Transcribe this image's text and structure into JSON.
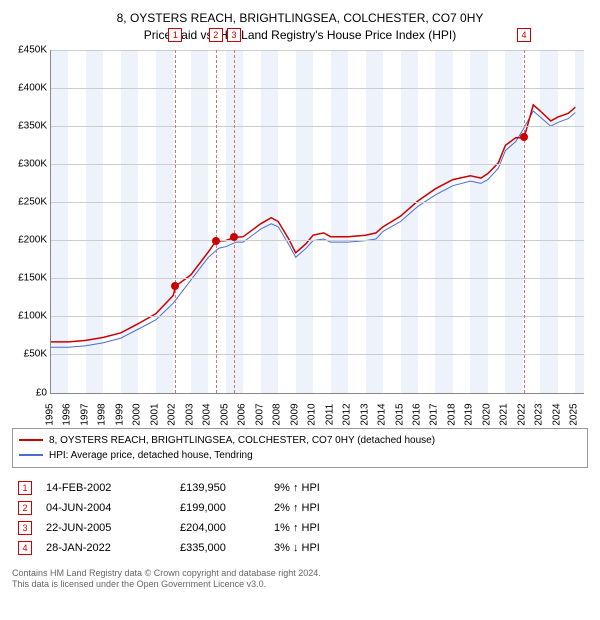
{
  "title": {
    "line1": "8, OYSTERS REACH, BRIGHTLINGSEA, COLCHESTER, CO7 0HY",
    "line2": "Price paid vs. HM Land Registry's House Price Index (HPI)"
  },
  "chart": {
    "type": "line",
    "background_color": "#ffffff",
    "grid_color": "#cccccc",
    "shade_color": "#eef2fa",
    "x_min": 1995,
    "x_max": 2025.5,
    "y_min": 0,
    "y_max": 450000,
    "y_ticks": [
      0,
      50000,
      100000,
      150000,
      200000,
      250000,
      300000,
      350000,
      400000,
      450000
    ],
    "y_tick_labels": [
      "£0",
      "£50K",
      "£100K",
      "£150K",
      "£200K",
      "£250K",
      "£300K",
      "£350K",
      "£400K",
      "£450K"
    ],
    "x_ticks": [
      1995,
      1996,
      1997,
      1998,
      1999,
      2000,
      2001,
      2002,
      2003,
      2004,
      2005,
      2006,
      2007,
      2008,
      2009,
      2010,
      2011,
      2012,
      2013,
      2014,
      2015,
      2016,
      2017,
      2018,
      2019,
      2020,
      2021,
      2022,
      2023,
      2024,
      2025
    ],
    "shaded_years": [
      1995,
      1997,
      1999,
      2001,
      2003,
      2005,
      2007,
      2009,
      2011,
      2013,
      2015,
      2017,
      2019,
      2021,
      2023,
      2025
    ],
    "series": [
      {
        "name": "hpi",
        "label": "HPI: Average price, detached house, Tendring",
        "color": "#4a6fd4",
        "line_width": 1,
        "data": [
          [
            1995,
            60000
          ],
          [
            1996,
            60000
          ],
          [
            1997,
            62000
          ],
          [
            1998,
            66000
          ],
          [
            1999,
            72000
          ],
          [
            2000,
            84000
          ],
          [
            2001,
            96000
          ],
          [
            2002,
            118000
          ],
          [
            2003,
            148000
          ],
          [
            2004,
            178000
          ],
          [
            2004.6,
            190000
          ],
          [
            2005,
            192000
          ],
          [
            2005.6,
            198000
          ],
          [
            2006,
            198000
          ],
          [
            2007,
            215000
          ],
          [
            2007.6,
            222000
          ],
          [
            2008,
            218000
          ],
          [
            2008.6,
            195000
          ],
          [
            2009,
            178000
          ],
          [
            2009.6,
            190000
          ],
          [
            2010,
            200000
          ],
          [
            2010.6,
            202000
          ],
          [
            2011,
            198000
          ],
          [
            2012,
            198000
          ],
          [
            2013,
            200000
          ],
          [
            2013.6,
            202000
          ],
          [
            2014,
            212000
          ],
          [
            2015,
            225000
          ],
          [
            2016,
            245000
          ],
          [
            2017,
            260000
          ],
          [
            2018,
            272000
          ],
          [
            2019,
            278000
          ],
          [
            2019.6,
            275000
          ],
          [
            2020,
            280000
          ],
          [
            2020.6,
            295000
          ],
          [
            2021,
            318000
          ],
          [
            2021.6,
            330000
          ],
          [
            2022,
            345000
          ],
          [
            2022.6,
            370000
          ],
          [
            2023,
            362000
          ],
          [
            2023.6,
            350000
          ],
          [
            2024,
            355000
          ],
          [
            2024.6,
            360000
          ],
          [
            2025,
            368000
          ]
        ]
      },
      {
        "name": "property",
        "label": "8, OYSTERS REACH, BRIGHTLINGSEA, COLCHESTER, CO7 0HY (detached house)",
        "color": "#cc0000",
        "line_width": 1.5,
        "data": [
          [
            1995,
            67000
          ],
          [
            1996,
            67000
          ],
          [
            1997,
            69000
          ],
          [
            1998,
            73000
          ],
          [
            1999,
            79000
          ],
          [
            2000,
            91000
          ],
          [
            2001,
            104000
          ],
          [
            2002,
            128000
          ],
          [
            2002.12,
            139950
          ],
          [
            2003,
            155000
          ],
          [
            2004,
            185000
          ],
          [
            2004.43,
            199000
          ],
          [
            2005,
            200000
          ],
          [
            2005.47,
            204000
          ],
          [
            2006,
            205000
          ],
          [
            2007,
            222000
          ],
          [
            2007.6,
            230000
          ],
          [
            2008,
            225000
          ],
          [
            2008.6,
            202000
          ],
          [
            2009,
            184000
          ],
          [
            2009.6,
            196000
          ],
          [
            2010,
            207000
          ],
          [
            2010.6,
            210000
          ],
          [
            2011,
            205000
          ],
          [
            2012,
            205000
          ],
          [
            2013,
            207000
          ],
          [
            2013.6,
            210000
          ],
          [
            2014,
            218000
          ],
          [
            2015,
            232000
          ],
          [
            2016,
            252000
          ],
          [
            2017,
            268000
          ],
          [
            2018,
            280000
          ],
          [
            2019,
            285000
          ],
          [
            2019.6,
            282000
          ],
          [
            2020,
            288000
          ],
          [
            2020.6,
            302000
          ],
          [
            2021,
            325000
          ],
          [
            2021.6,
            335000
          ],
          [
            2022.07,
            335000
          ],
          [
            2022.6,
            378000
          ],
          [
            2023,
            370000
          ],
          [
            2023.6,
            357000
          ],
          [
            2024,
            362000
          ],
          [
            2024.6,
            367000
          ],
          [
            2025,
            375000
          ]
        ]
      }
    ],
    "markers": [
      {
        "n": "1",
        "x": 2002.12,
        "y": 139950
      },
      {
        "n": "2",
        "x": 2004.43,
        "y": 199000
      },
      {
        "n": "3",
        "x": 2005.47,
        "y": 204000
      },
      {
        "n": "4",
        "x": 2022.07,
        "y": 335000
      }
    ]
  },
  "legend": {
    "items": [
      {
        "color": "#cc0000",
        "label": "8, OYSTERS REACH, BRIGHTLINGSEA, COLCHESTER, CO7 0HY (detached house)"
      },
      {
        "color": "#4a6fd4",
        "label": "HPI: Average price, detached house, Tendring"
      }
    ]
  },
  "sales": [
    {
      "n": "1",
      "date": "14-FEB-2002",
      "price": "£139,950",
      "diff": "9% ↑ HPI"
    },
    {
      "n": "2",
      "date": "04-JUN-2004",
      "price": "£199,000",
      "diff": "2% ↑ HPI"
    },
    {
      "n": "3",
      "date": "22-JUN-2005",
      "price": "£204,000",
      "diff": "1% ↑ HPI"
    },
    {
      "n": "4",
      "date": "28-JAN-2022",
      "price": "£335,000",
      "diff": "3% ↓ HPI"
    }
  ],
  "footer": {
    "line1": "Contains HM Land Registry data © Crown copyright and database right 2024.",
    "line2": "This data is licensed under the Open Government Licence v3.0."
  }
}
